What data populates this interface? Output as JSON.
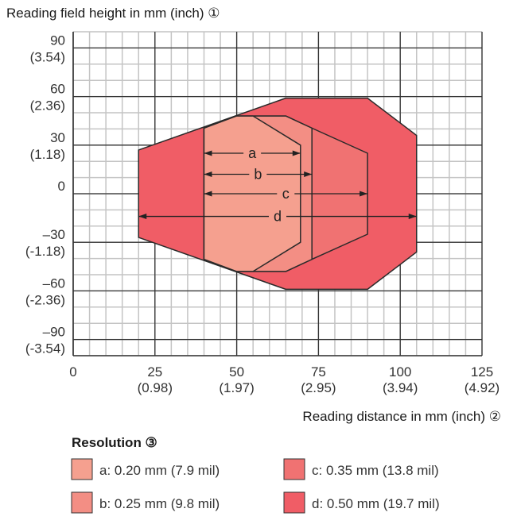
{
  "chart_data": {
    "type": "area",
    "ylabel": "Reading field height in mm (inch) ①",
    "xlabel": "Reading distance in mm (inch) ②",
    "xlim": [
      0,
      125
    ],
    "ylim": [
      -100,
      100
    ],
    "grid": true,
    "x_ticks": [
      {
        "value": 0,
        "label": "0",
        "sub": ""
      },
      {
        "value": 25,
        "label": "25",
        "sub": "(0.98)"
      },
      {
        "value": 50,
        "label": "50",
        "sub": "(1.97)"
      },
      {
        "value": 75,
        "label": "75",
        "sub": "(2.95)"
      },
      {
        "value": 100,
        "label": "100",
        "sub": "(3.94)"
      },
      {
        "value": 125,
        "label": "125",
        "sub": "(4.92)"
      }
    ],
    "y_ticks": [
      {
        "value": 90,
        "label": "90",
        "sub": "(3.54)"
      },
      {
        "value": 60,
        "label": "60",
        "sub": "(2.36)"
      },
      {
        "value": 30,
        "label": "30",
        "sub": "(1.18)"
      },
      {
        "value": 0,
        "label": "0",
        "sub": ""
      },
      {
        "value": -30,
        "label": "–30",
        "sub": "(-1.18)"
      },
      {
        "value": -60,
        "label": "–60",
        "sub": "(-2.36)"
      },
      {
        "value": -90,
        "label": "–90",
        "sub": "(-3.54)"
      }
    ],
    "legend_title": "Resolution ③",
    "legend_placement": "bottom",
    "series": [
      {
        "key": "d",
        "name": "d: 0.50 mm",
        "detail": "(19.7 mil)",
        "color": "#f05d66",
        "polygon": [
          [
            20,
            27
          ],
          [
            65,
            59
          ],
          [
            90,
            59
          ],
          [
            105,
            36
          ],
          [
            105,
            -36
          ],
          [
            90,
            -59
          ],
          [
            65,
            -59
          ],
          [
            20,
            -27
          ]
        ],
        "range": [
          20,
          105
        ],
        "arrow_y": -14
      },
      {
        "key": "c",
        "name": "c: 0.35 mm",
        "detail": "(13.8 mil)",
        "color": "#f07272",
        "polygon": [
          [
            40,
            40.5
          ],
          [
            50,
            48
          ],
          [
            65,
            48
          ],
          [
            73,
            40.5
          ],
          [
            90,
            25
          ],
          [
            90,
            -25
          ],
          [
            73,
            -40.5
          ],
          [
            65,
            -48
          ],
          [
            50,
            -48
          ],
          [
            40,
            -40.5
          ]
        ],
        "range": [
          40,
          90
        ],
        "arrow_y": 0
      },
      {
        "key": "b",
        "name": "b: 0.25 mm",
        "detail": "(9.8 mil)",
        "color": "#f38e84",
        "polygon": [
          [
            40,
            40.5
          ],
          [
            50,
            48
          ],
          [
            65,
            48
          ],
          [
            73,
            40.5
          ],
          [
            73,
            -40.5
          ],
          [
            65,
            -48
          ],
          [
            50,
            -48
          ],
          [
            40,
            -40.5
          ]
        ],
        "range": [
          40,
          73
        ],
        "arrow_y": 12
      },
      {
        "key": "a",
        "name": "a: 0.20 mm",
        "detail": "(7.9 mil)",
        "color": "#f5a08f",
        "polygon": [
          [
            40,
            40.5
          ],
          [
            50,
            48
          ],
          [
            55,
            48
          ],
          [
            69.5,
            30
          ],
          [
            69.5,
            -30
          ],
          [
            55,
            -48
          ],
          [
            50,
            -48
          ],
          [
            40,
            -40.5
          ]
        ],
        "range": [
          40,
          69.5
        ],
        "arrow_y": 25
      }
    ]
  }
}
